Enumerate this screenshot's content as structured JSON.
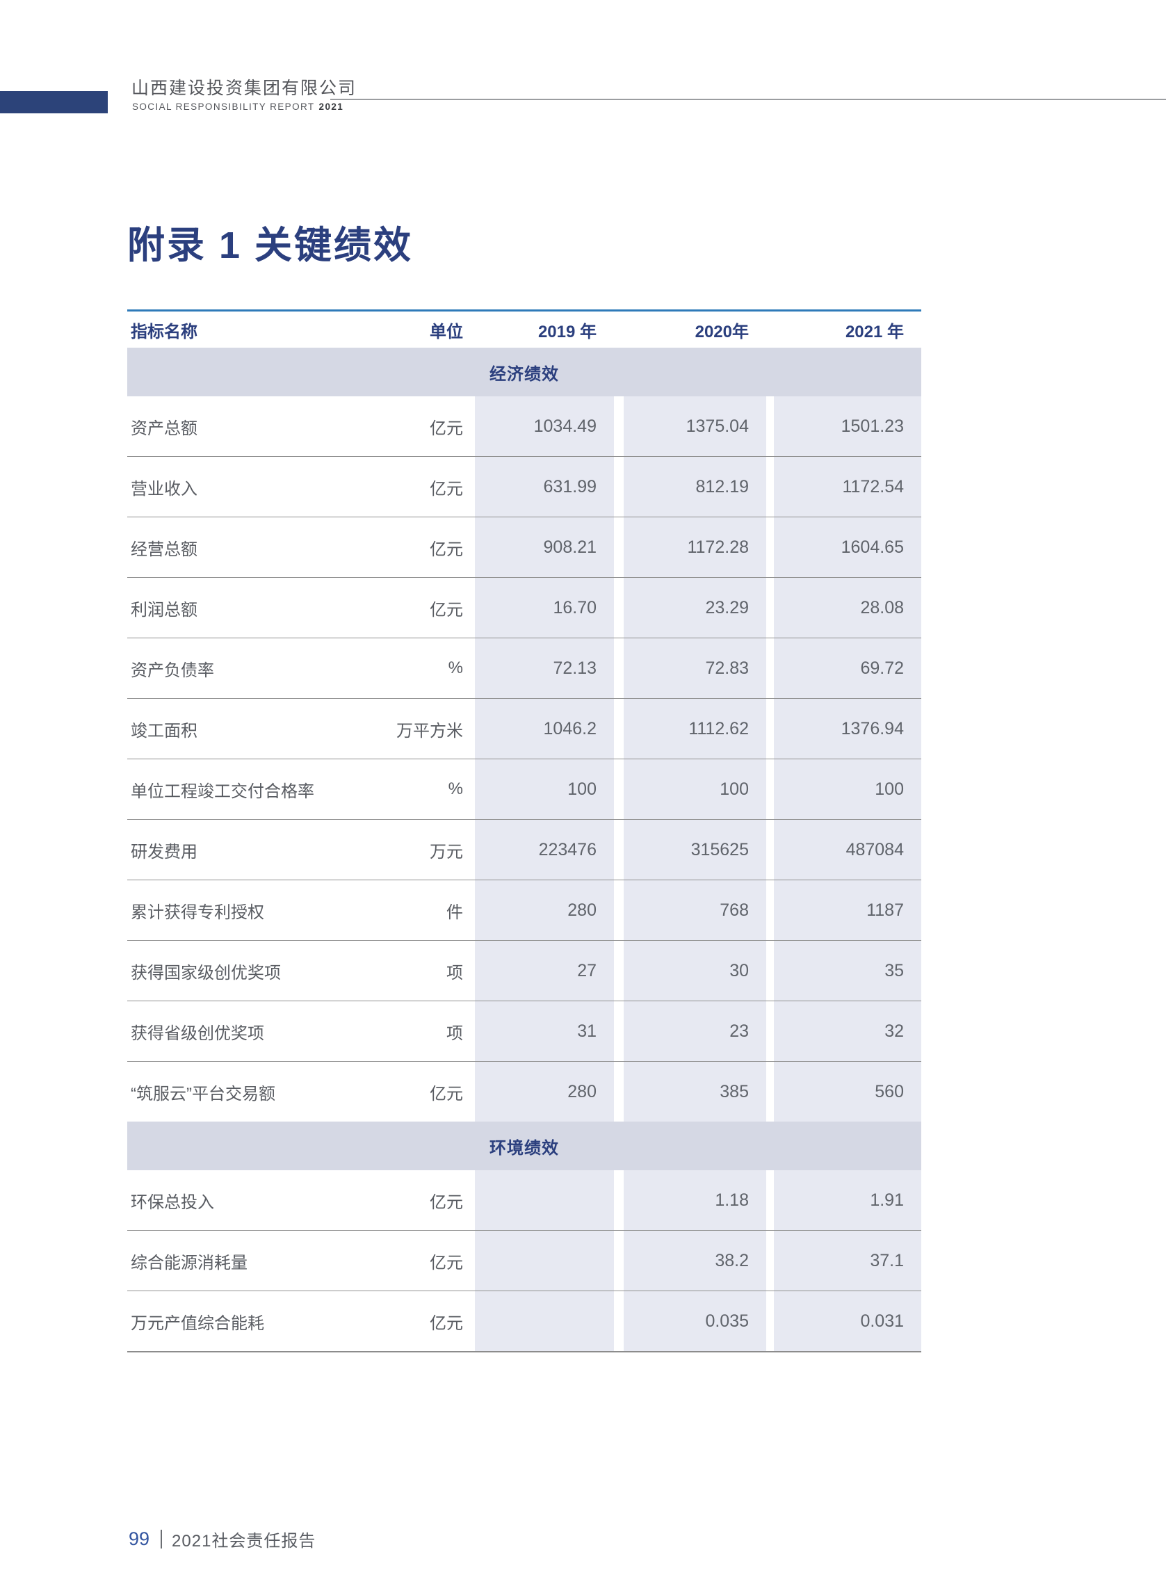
{
  "header": {
    "company_cn": "山西建设投资集团有限公司",
    "company_en": "SOCIAL RESPONSIBILITY REPORT",
    "report_year": "2021"
  },
  "title": "附录 1 关键绩效",
  "colors": {
    "navy": "#2b3f7e",
    "header_bar_blue": "#2c4379",
    "table_top_border_blue": "#2e7ab9",
    "section_band_bg": "#d5d8e4",
    "value_cell_bg": "#e7e9f2",
    "body_text_gray": "#595c62"
  },
  "table": {
    "headers": {
      "name": "指标名称",
      "unit": "单位",
      "y2019": "2019 年",
      "y2020": "2020年",
      "y2021": "2021 年"
    },
    "sections": [
      {
        "title": "经济绩效",
        "rows": [
          {
            "name": "资产总额",
            "unit": "亿元",
            "v2019": "1034.49",
            "v2020": "1375.04",
            "v2021": "1501.23"
          },
          {
            "name": "营业收入",
            "unit": "亿元",
            "v2019": "631.99",
            "v2020": "812.19",
            "v2021": "1172.54"
          },
          {
            "name": "经营总额",
            "unit": "亿元",
            "v2019": "908.21",
            "v2020": "1172.28",
            "v2021": "1604.65"
          },
          {
            "name": "利润总额",
            "unit": "亿元",
            "v2019": "16.70",
            "v2020": "23.29",
            "v2021": "28.08"
          },
          {
            "name": "资产负债率",
            "unit": "%",
            "v2019": "72.13",
            "v2020": "72.83",
            "v2021": "69.72"
          },
          {
            "name": "竣工面积",
            "unit": "万平方米",
            "v2019": "1046.2",
            "v2020": "1112.62",
            "v2021": "1376.94"
          },
          {
            "name": "单位工程竣工交付合格率",
            "unit": "%",
            "v2019": "100",
            "v2020": "100",
            "v2021": "100"
          },
          {
            "name": "研发费用",
            "unit": "万元",
            "v2019": "223476",
            "v2020": "315625",
            "v2021": "487084"
          },
          {
            "name": "累计获得专利授权",
            "unit": "件",
            "v2019": "280",
            "v2020": "768",
            "v2021": "1187"
          },
          {
            "name": "获得国家级创优奖项",
            "unit": "项",
            "v2019": "27",
            "v2020": "30",
            "v2021": "35"
          },
          {
            "name": "获得省级创优奖项",
            "unit": "项",
            "v2019": "31",
            "v2020": "23",
            "v2021": "32"
          },
          {
            "name": "“筑服云”平台交易额",
            "unit": "亿元",
            "v2019": "280",
            "v2020": "385",
            "v2021": "560"
          }
        ]
      },
      {
        "title": "环境绩效",
        "rows": [
          {
            "name": "环保总投入",
            "unit": "亿元",
            "v2019": "",
            "v2020": "1.18",
            "v2021": "1.91"
          },
          {
            "name": "综合能源消耗量",
            "unit": "亿元",
            "v2019": "",
            "v2020": "38.2",
            "v2021": "37.1"
          },
          {
            "name": "万元产值综合能耗",
            "unit": "亿元",
            "v2019": "",
            "v2020": "0.035",
            "v2021": "0.031"
          }
        ]
      }
    ]
  },
  "footer": {
    "page_number": "99",
    "report_name": "2021社会责任报告"
  }
}
